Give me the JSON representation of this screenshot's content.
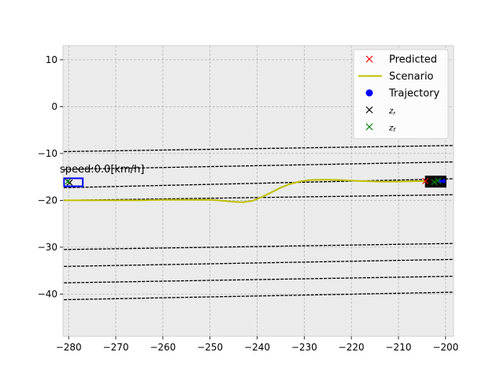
{
  "chart_data": {
    "type": "line",
    "title": "",
    "xlabel": "",
    "ylabel": "",
    "xlim": [
      -281.2,
      -198.3
    ],
    "ylim": [
      -49.0,
      13.0
    ],
    "xticks": [
      -280,
      -270,
      -260,
      -250,
      -240,
      -230,
      -220,
      -210,
      -200
    ],
    "yticks": [
      10,
      0,
      -10,
      -20,
      -30,
      -40
    ],
    "grid": true,
    "legend_position": "top-right",
    "colors": {
      "background": "#ebebeb",
      "grid": "#b0b0b0",
      "scenario": "#bfbf00",
      "predicted": "#ff0000",
      "trajectory": "#0000ff",
      "z_r": "#000000",
      "z_f": "#008000",
      "lanes": "#000000",
      "ego_box": "#0000ff",
      "vehicle_box": "#000000"
    },
    "legend": [
      {
        "label": "Predicted",
        "marker": "x",
        "color": "#ff0000"
      },
      {
        "label": "Scenario",
        "marker": "line",
        "color": "#bfbf00"
      },
      {
        "label": "Trajectory",
        "marker": "dot",
        "color": "#0000ff"
      },
      {
        "label": "z_r",
        "marker": "x",
        "color": "#000000"
      },
      {
        "label": "z_f",
        "marker": "x",
        "color": "#008000"
      }
    ],
    "annotation": "speed:0.0[km/h]",
    "series": [
      {
        "name": "Scenario",
        "x": [
          -281,
          -275,
          -270,
          -265,
          -260,
          -255,
          -250,
          -247,
          -245,
          -243,
          -241,
          -239,
          -237,
          -235,
          -233,
          -231,
          -229,
          -227,
          -225,
          -222,
          -220,
          -217,
          -214,
          -210,
          -206,
          -203
        ],
        "y": [
          -20.0,
          -20.0,
          -20.0,
          -20.0,
          -19.9,
          -19.9,
          -19.9,
          -20.1,
          -20.3,
          -20.4,
          -20.1,
          -19.3,
          -18.3,
          -17.3,
          -16.5,
          -16.0,
          -15.7,
          -15.6,
          -15.6,
          -15.7,
          -15.8,
          -15.9,
          -16.0,
          -16.0,
          -15.9,
          -15.9
        ]
      }
    ],
    "lanes": [
      {
        "x": [
          -281,
          -198.3
        ],
        "y": [
          -9.6,
          -8.3
        ]
      },
      {
        "x": [
          -281,
          -198.3
        ],
        "y": [
          -13.4,
          -11.8
        ]
      },
      {
        "x": [
          -281,
          -198.3
        ],
        "y": [
          -17.3,
          -15.4
        ]
      },
      {
        "x": [
          -281,
          -198.3
        ],
        "y": [
          -20.0,
          -18.8
        ]
      },
      {
        "x": [
          -281,
          -198.3
        ],
        "y": [
          -30.5,
          -29.2
        ]
      },
      {
        "x": [
          -281,
          -198.3
        ],
        "y": [
          -34.1,
          -32.6
        ]
      },
      {
        "x": [
          -281,
          -198.3
        ],
        "y": [
          -37.6,
          -36.2
        ]
      },
      {
        "x": [
          -281,
          -198.3
        ],
        "y": [
          -41.2,
          -39.6
        ]
      }
    ],
    "vehicles": [
      {
        "role": "ego",
        "x_range": [
          -281.0,
          -277.0
        ],
        "y_range": [
          -17.0,
          -15.3
        ]
      },
      {
        "role": "other",
        "x_range": [
          -204.2,
          -200.0
        ],
        "y_range": [
          -17.1,
          -14.9
        ]
      }
    ],
    "markers": {
      "predicted": [
        [
          -204.3,
          -15.9
        ]
      ],
      "z_r": [
        [
          -279.8,
          -16.2
        ],
        [
          -201.8,
          -16.0
        ]
      ],
      "z_f": [
        [
          -280.2,
          -16.0
        ],
        [
          -201.6,
          -15.8
        ],
        [
          -202.4,
          -16.1
        ]
      ],
      "trajectory": [
        [
          -201.2,
          -16.0
        ],
        [
          -200.4,
          -15.9
        ]
      ]
    }
  }
}
